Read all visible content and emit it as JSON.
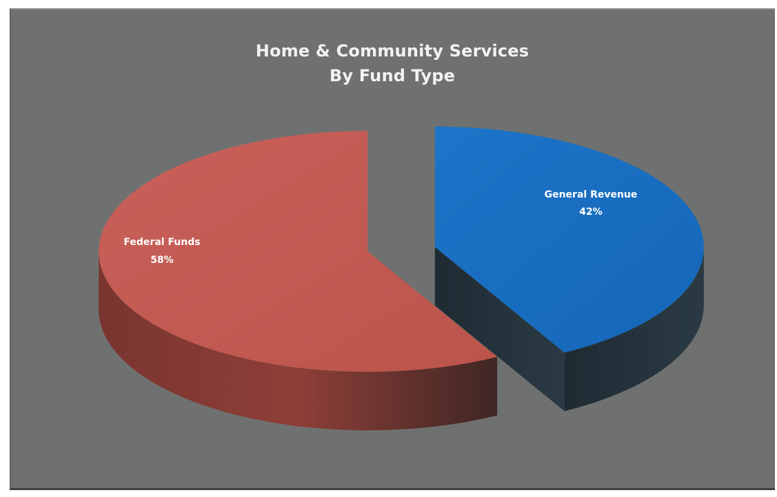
{
  "chart_data": {
    "type": "pie",
    "title": "Home & Community Services\nBy Fund Type",
    "title_lines": [
      "Home & Community Services",
      "By Fund Type"
    ],
    "three_d": true,
    "exploded": true,
    "legend": "none",
    "slices": [
      {
        "label": "General Revenue",
        "percent_label": "42%",
        "value": 42,
        "color": "#1a6ec2"
      },
      {
        "label": "Federal Funds",
        "percent_label": "58%",
        "value": 58,
        "color": "#c25a50"
      }
    ]
  }
}
